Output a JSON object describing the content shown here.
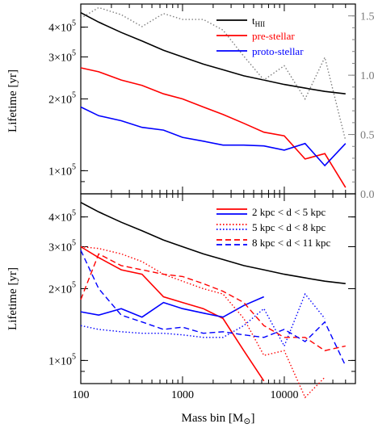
{
  "chart_data": [
    {
      "type": "line",
      "panel": "top",
      "xscale": "log",
      "xlim": [
        100,
        50000
      ],
      "yscale": "log",
      "ylim": [
        80000,
        500000
      ],
      "ylabel": "Lifetime [yr]",
      "y_ticks": [
        {
          "value": 100000,
          "mant": "1×10",
          "exp": "5"
        },
        {
          "value": 200000,
          "mant": "2×10",
          "exp": "5"
        },
        {
          "value": 300000,
          "mant": "3×10",
          "exp": "5"
        },
        {
          "value": 400000,
          "mant": "4×10",
          "exp": "5"
        }
      ],
      "right_axis": {
        "ylim": [
          0,
          1.6
        ],
        "ticks": [
          "0.0",
          "0.5",
          "1.0",
          "1.5"
        ],
        "color": "#808080"
      },
      "legend": {
        "placement": "top-right",
        "entries": [
          {
            "text": "t",
            "sub": "HII",
            "color": "#000000"
          },
          {
            "text": "pre-stellar",
            "sub": "",
            "color": "#ff0000"
          },
          {
            "text": "proto-stellar",
            "sub": "",
            "color": "#0000ff"
          }
        ]
      },
      "series": [
        {
          "color": "#000000",
          "style": "solid",
          "axis": "left",
          "x": [
            100,
            150,
            250,
            400,
            650,
            1000,
            1600,
            2500,
            4000,
            6300,
            10000,
            16000,
            25000,
            40000
          ],
          "y": [
            460000,
            420000,
            380000,
            350000,
            320000,
            300000,
            280000,
            265000,
            250000,
            240000,
            230000,
            222000,
            215000,
            210000
          ]
        },
        {
          "color": "#ff0000",
          "style": "solid",
          "axis": "left",
          "x": [
            100,
            150,
            250,
            400,
            650,
            1000,
            1600,
            2500,
            4000,
            6300,
            10000,
            16000,
            25000,
            40000
          ],
          "y": [
            270000,
            260000,
            240000,
            228000,
            210000,
            200000,
            185000,
            172000,
            158000,
            145000,
            140000,
            112000,
            118000,
            85000
          ]
        },
        {
          "color": "#0000ff",
          "style": "solid",
          "axis": "left",
          "x": [
            100,
            150,
            250,
            400,
            650,
            1000,
            1600,
            2500,
            4000,
            6300,
            10000,
            16000,
            25000,
            40000
          ],
          "y": [
            185000,
            170000,
            162000,
            152000,
            148000,
            138000,
            133000,
            128000,
            128000,
            127000,
            122000,
            130000,
            105000,
            130000
          ]
        },
        {
          "color": "#808080",
          "style": "dotted",
          "axis": "right",
          "x": [
            100,
            150,
            250,
            400,
            650,
            1000,
            1600,
            2500,
            4000,
            6300,
            10000,
            16000,
            25000,
            40000
          ],
          "y": [
            1.48,
            1.57,
            1.51,
            1.41,
            1.52,
            1.47,
            1.47,
            1.38,
            1.16,
            0.96,
            1.08,
            0.8,
            1.15,
            0.45
          ]
        }
      ]
    },
    {
      "type": "line",
      "panel": "bottom",
      "xscale": "log",
      "xlim": [
        100,
        50000
      ],
      "x_ticks": [
        "100",
        "1000",
        "10000"
      ],
      "xlabel": "Mass bin [M",
      "xlabel_symbol": "⊙",
      "xlabel_end": "]",
      "yscale": "log",
      "ylim": [
        80000,
        500000
      ],
      "ylabel": "Lifetime [yr]",
      "y_ticks": [
        {
          "value": 100000,
          "mant": "1×10",
          "exp": "5"
        },
        {
          "value": 200000,
          "mant": "2×10",
          "exp": "5"
        },
        {
          "value": 300000,
          "mant": "3×10",
          "exp": "5"
        },
        {
          "value": 400000,
          "mant": "4×10",
          "exp": "5"
        }
      ],
      "legend": {
        "placement": "top-right",
        "entries": [
          {
            "text": "2 kpc < d < 5 kpc",
            "style": "solid"
          },
          {
            "text": "5 kpc < d < 8 kpc",
            "style": "dotted"
          },
          {
            "text": "8 kpc < d < 11 kpc",
            "style": "dashed"
          }
        ]
      },
      "series": [
        {
          "color": "#000000",
          "style": "solid",
          "x": [
            100,
            150,
            250,
            400,
            650,
            1000,
            1600,
            2500,
            4000,
            6300,
            10000,
            16000,
            25000,
            40000
          ],
          "y": [
            460000,
            420000,
            380000,
            350000,
            320000,
            300000,
            280000,
            265000,
            250000,
            240000,
            230000,
            222000,
            215000,
            210000
          ]
        },
        {
          "color": "#ff0000",
          "style": "solid",
          "x": [
            100,
            150,
            250,
            400,
            650,
            1000,
            1600,
            2500,
            4000,
            6300
          ],
          "y": [
            300000,
            270000,
            240000,
            230000,
            185000,
            175000,
            165000,
            150000,
            110000,
            82000
          ]
        },
        {
          "color": "#0000ff",
          "style": "solid",
          "x": [
            100,
            150,
            250,
            400,
            650,
            1000,
            1600,
            2500,
            4000,
            6300
          ],
          "y": [
            160000,
            155000,
            165000,
            152000,
            175000,
            165000,
            158000,
            152000,
            170000,
            185000
          ]
        },
        {
          "color": "#ff0000",
          "style": "dotted",
          "x": [
            100,
            150,
            250,
            400,
            650,
            1000,
            1600,
            2500,
            4000,
            6300,
            10000,
            16000,
            25000
          ],
          "y": [
            300000,
            295000,
            280000,
            260000,
            230000,
            215000,
            200000,
            190000,
            150000,
            105000,
            110000,
            70000,
            85000
          ]
        },
        {
          "color": "#0000ff",
          "style": "dotted",
          "x": [
            100,
            150,
            250,
            400,
            650,
            1000,
            1600,
            2500,
            4000,
            6300,
            10000,
            16000,
            25000
          ],
          "y": [
            140000,
            135000,
            132000,
            130000,
            130000,
            128000,
            125000,
            125000,
            140000,
            165000,
            115000,
            190000,
            150000
          ]
        },
        {
          "color": "#ff0000",
          "style": "dashed",
          "x": [
            100,
            150,
            250,
            400,
            650,
            1000,
            1600,
            2500,
            4000,
            6300,
            10000,
            16000,
            25000,
            40000
          ],
          "y": [
            180000,
            280000,
            250000,
            240000,
            230000,
            225000,
            210000,
            195000,
            175000,
            140000,
            125000,
            125000,
            110000,
            115000
          ]
        },
        {
          "color": "#0000ff",
          "style": "dashed",
          "x": [
            100,
            150,
            250,
            400,
            650,
            1000,
            1600,
            2500,
            4000,
            6300,
            10000,
            16000,
            25000,
            40000
          ],
          "y": [
            290000,
            200000,
            155000,
            145000,
            135000,
            138000,
            130000,
            132000,
            128000,
            125000,
            135000,
            120000,
            145000,
            95000
          ]
        }
      ]
    }
  ]
}
